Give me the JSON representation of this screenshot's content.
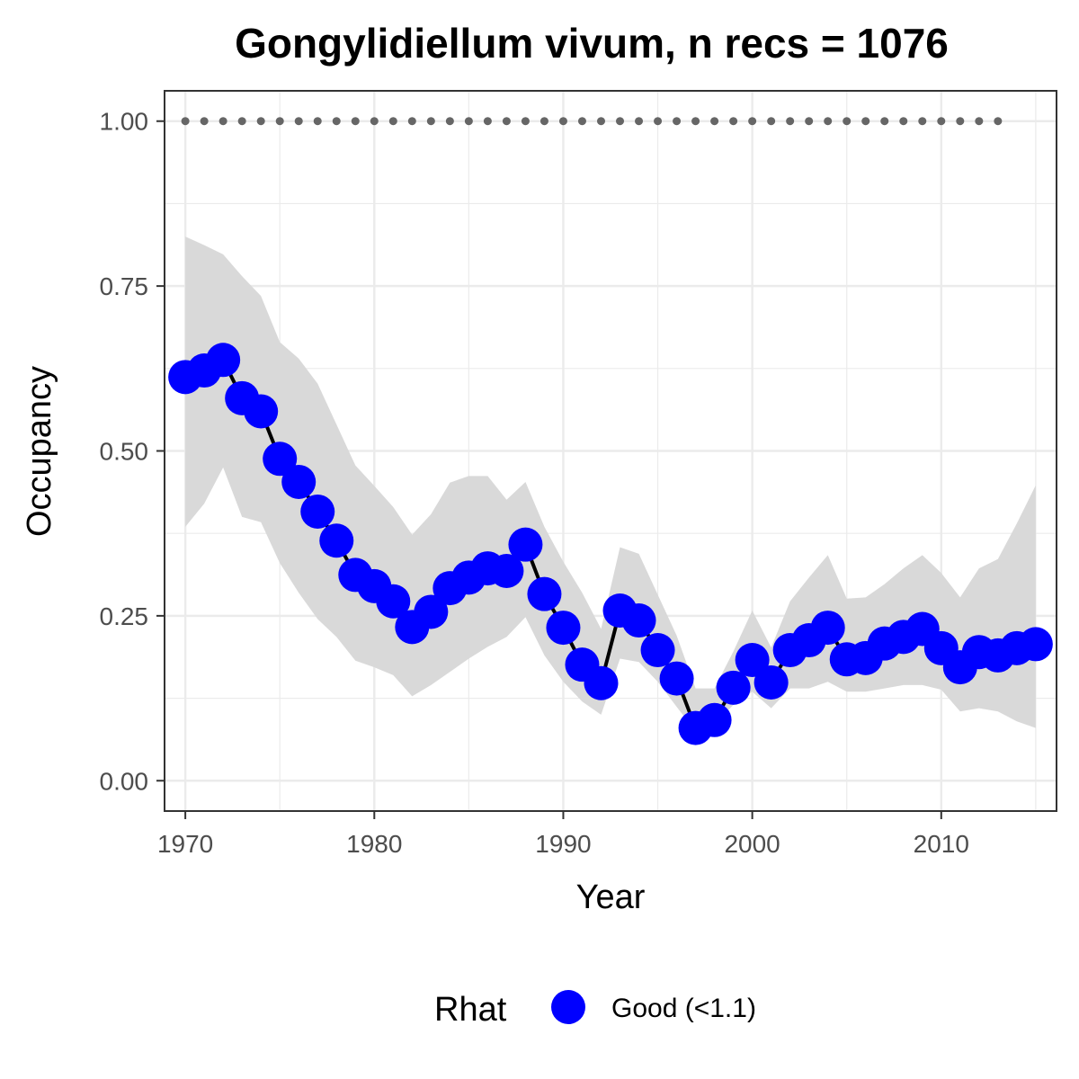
{
  "chart_data": {
    "type": "line",
    "title": "Gongylidiellum vivum, n recs = 1076",
    "xlabel": "Year",
    "ylabel": "Occupancy",
    "xlim": [
      1968.9,
      2016.1
    ],
    "ylim": [
      -0.046,
      1.046
    ],
    "x_ticks": [
      1970,
      1980,
      1990,
      2000,
      2010
    ],
    "x_tick_labels": [
      "1970",
      "1980",
      "1990",
      "2000",
      "2010"
    ],
    "y_ticks": [
      0,
      0.25,
      0.5,
      0.75,
      1.0
    ],
    "y_tick_labels": [
      "0.00",
      "0.25",
      "0.50",
      "0.75",
      "1.00"
    ],
    "grid": true,
    "legend_position": "bottom",
    "legend": {
      "title": "Rhat",
      "entries": [
        {
          "label": "Good (<1.1)",
          "color": "#0000ff"
        }
      ]
    },
    "colors": {
      "points": "#0000ff",
      "line": "#000000",
      "ribbon": "#d9d9d9",
      "dotted": "#666666"
    },
    "series": [
      {
        "x": [
          1970,
          1971,
          1972,
          1973,
          1974,
          1975,
          1976,
          1977,
          1978,
          1979,
          1980,
          1981,
          1982,
          1983,
          1984,
          1985,
          1986,
          1987,
          1988,
          1989,
          1990,
          1991,
          1992,
          1993,
          1994,
          1995,
          1996,
          1997,
          1998,
          1999,
          2000,
          2001,
          2002,
          2003,
          2004,
          2005,
          2006,
          2007,
          2008,
          2009,
          2010,
          2011,
          2012,
          2013,
          2014,
          2015
        ],
        "y": [
          0.612,
          0.622,
          0.638,
          0.58,
          0.56,
          0.488,
          0.453,
          0.408,
          0.364,
          0.312,
          0.295,
          0.272,
          0.233,
          0.256,
          0.292,
          0.308,
          0.322,
          0.318,
          0.358,
          0.283,
          0.232,
          0.176,
          0.148,
          0.258,
          0.243,
          0.198,
          0.155,
          0.08,
          0.092,
          0.141,
          0.183,
          0.149,
          0.198,
          0.213,
          0.232,
          0.184,
          0.186,
          0.208,
          0.218,
          0.23,
          0.201,
          0.172,
          0.195,
          0.19,
          0.201,
          0.207
        ],
        "lower": [
          0.385,
          0.42,
          0.475,
          0.4,
          0.392,
          0.33,
          0.285,
          0.245,
          0.218,
          0.182,
          0.172,
          0.16,
          0.128,
          0.145,
          0.165,
          0.185,
          0.203,
          0.218,
          0.248,
          0.19,
          0.15,
          0.12,
          0.1,
          0.185,
          0.18,
          0.15,
          0.112,
          0.075,
          0.085,
          0.115,
          0.135,
          0.11,
          0.14,
          0.14,
          0.15,
          0.135,
          0.135,
          0.14,
          0.145,
          0.145,
          0.138,
          0.105,
          0.11,
          0.105,
          0.09,
          0.08
        ],
        "upper": [
          0.825,
          0.812,
          0.798,
          0.765,
          0.735,
          0.665,
          0.64,
          0.602,
          0.54,
          0.478,
          0.447,
          0.415,
          0.373,
          0.404,
          0.452,
          0.462,
          0.462,
          0.426,
          0.453,
          0.385,
          0.332,
          0.285,
          0.23,
          0.354,
          0.344,
          0.282,
          0.22,
          0.14,
          0.14,
          0.196,
          0.258,
          0.202,
          0.272,
          0.308,
          0.342,
          0.276,
          0.278,
          0.298,
          0.322,
          0.342,
          0.315,
          0.278,
          0.322,
          0.336,
          0.39,
          0.448
        ]
      }
    ],
    "dotted_line": {
      "x": [
        1970,
        1971,
        1972,
        1973,
        1974,
        1975,
        1976,
        1977,
        1978,
        1979,
        1980,
        1981,
        1982,
        1983,
        1984,
        1985,
        1986,
        1987,
        1988,
        1989,
        1990,
        1991,
        1992,
        1993,
        1994,
        1995,
        1996,
        1997,
        1998,
        1999,
        2000,
        2001,
        2002,
        2003,
        2004,
        2005,
        2006,
        2007,
        2008,
        2009,
        2010,
        2011,
        2012,
        2013
      ],
      "y": 1.0
    }
  }
}
